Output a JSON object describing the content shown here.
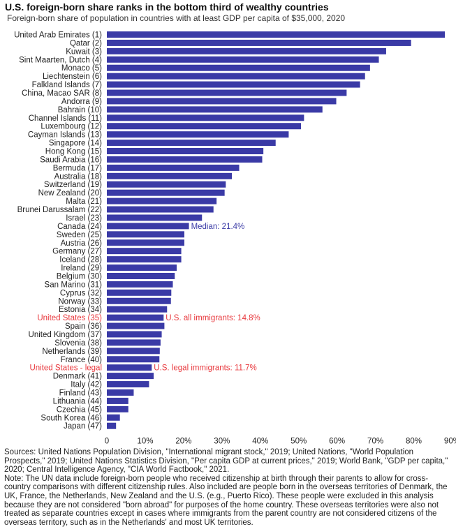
{
  "chart_data": {
    "type": "bar",
    "orientation": "horizontal",
    "title": "U.S. foreign-born share ranks in the bottom third of wealthy countries",
    "subtitle": "Foreign-born share of population in countries with at least GDP per capita of $35,000, 2020",
    "categories": [
      "United Arab Emirates (1)",
      "Qatar (2)",
      "Kuwait (3)",
      "Sint Maarten, Dutch (4)",
      "Monaco (5)",
      "Liechtenstein (6)",
      "Falkland Islands (7)",
      "China, Macao SAR (8)",
      "Andorra (9)",
      "Bahrain (10)",
      "Channel Islands (11)",
      "Luxembourg (12)",
      "Cayman Islands (13)",
      "Singapore (14)",
      "Hong Kong (15)",
      "Saudi Arabia (16)",
      "Bermuda (17)",
      "Australia (18)",
      "Switzerland (19)",
      "New Zealand (20)",
      "Malta (21)",
      "Brunei Darussalam (22)",
      "Israel (23)",
      "Canada (24)",
      "Sweden (25)",
      "Austria (26)",
      "Germany (27)",
      "Iceland (28)",
      "Ireland (29)",
      "Belgium (30)",
      "San Marino (31)",
      "Cyprus (32)",
      "Norway (33)",
      "Estonia (34)",
      "United States (35)",
      "Spain (36)",
      "United Kingdom (37)",
      "Slovenia (38)",
      "Netherlands (39)",
      "France (40)",
      "United States - legal",
      "Denmark (41)",
      "Italy (42)",
      "Finland (43)",
      "Lithuania (44)",
      "Czechia (45)",
      "South Korea (46)",
      "Japan (47)"
    ],
    "values": [
      88.1,
      79.3,
      72.8,
      70.9,
      68.6,
      67.3,
      66.0,
      62.5,
      59.8,
      56.2,
      51.4,
      50.6,
      47.4,
      44.0,
      40.8,
      40.5,
      34.5,
      32.6,
      31.0,
      30.7,
      28.6,
      27.8,
      24.8,
      21.4,
      20.2,
      20.2,
      19.4,
      19.4,
      18.2,
      17.7,
      17.2,
      16.8,
      16.7,
      15.7,
      14.8,
      15.0,
      14.3,
      14.0,
      13.8,
      13.7,
      11.7,
      12.2,
      11.0,
      7.0,
      5.6,
      5.6,
      3.4,
      2.4
    ],
    "highlighted": [
      "United States (35)",
      "United States - legal"
    ],
    "annotations": [
      {
        "category": "Canada (24)",
        "text": "Median: 21.4%",
        "color": "#3a3aa6"
      },
      {
        "category": "United States (35)",
        "text": "U.S. all immigrants: 14.8%",
        "color": "#e8383d"
      },
      {
        "category": "United States - legal",
        "text": "U.S. legal immigrants: 11.7%",
        "color": "#e8383d"
      }
    ],
    "xlim": [
      0,
      88.1
    ],
    "xticks": [
      0,
      10,
      20,
      30,
      40,
      50,
      60,
      70,
      80,
      90
    ],
    "xtick_labels": [
      "0",
      "10%",
      "20%",
      "30%",
      "40%",
      "50%",
      "60%",
      "70%",
      "80%",
      "90%"
    ],
    "xlabel": "",
    "ylabel": "",
    "grid": false
  },
  "colors": {
    "bar": "#3a3aa6",
    "highlight_label": "#e8383d",
    "label": "#222222"
  },
  "notes": {
    "sources": "Sources: United Nations Population Division, \"International migrant stock,\" 2019; United Nations, \"World Population Prospects,\" 2019; United Nations Statistics Division, \"Per capita GDP at current prices,\" 2019; World Bank, \"GDP per capita,\" 2020; Central Intelligence Agency, \"CIA World  Factbook,\" 2021.",
    "note": "Note: The UN data include foreign-born people who received citizenship at birth through their parents to allow for cross-country comparisons with different citizenship rules. Also included are people born in the overseas territories of Denmark, the UK, France, the Netherlands, New Zealand and the U.S. (e.g., Puerto Rico). These people were excluded in this analysis because they are not considered \"born abroad\" for purposes of the home country. These overseas territories were also not treated as separate countries except in cases where immigrants from the parent country are not considered citizens of the overseas territory, such as in the Netherlands' and most UK territories."
  }
}
